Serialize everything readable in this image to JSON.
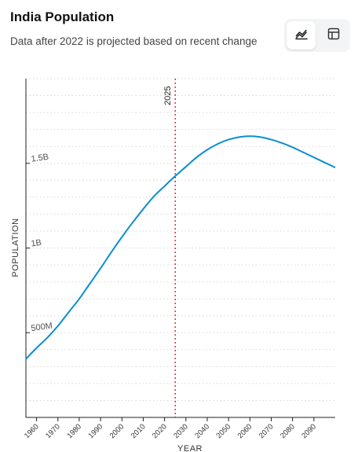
{
  "header": {
    "title": "India Population",
    "subtitle": "Data after 2022 is projected based on recent change"
  },
  "toolbar": {
    "chart_view_icon": "line-chart-icon",
    "table_view_icon": "table-grid-icon",
    "active": "chart"
  },
  "colors": {
    "line": "#0a8ed1",
    "marker": "#e0303a",
    "axis": "#222222",
    "grid": "#d8d8d8"
  },
  "chart_data": {
    "type": "line",
    "title": "India Population",
    "subtitle": "Data after 2022 is projected based on recent change",
    "xlabel": "YEAR",
    "ylabel": "POPULATION",
    "xlim": [
      1955,
      2100
    ],
    "ylim": [
      0,
      2000000000
    ],
    "x_ticks": [
      1960,
      1970,
      1980,
      1990,
      2000,
      2010,
      2020,
      2030,
      2040,
      2050,
      2060,
      2070,
      2080,
      2090
    ],
    "y_ticks": [
      {
        "value": 500000000,
        "label": "500M"
      },
      {
        "value": 1000000000,
        "label": "1B"
      },
      {
        "value": 1500000000,
        "label": "1.5B"
      }
    ],
    "grid": true,
    "marker": {
      "x": 2025,
      "label": "2025"
    },
    "series": [
      {
        "x": [
          1955,
          1960,
          1965,
          1970,
          1975,
          1980,
          1985,
          1990,
          1995,
          2000,
          2005,
          2010,
          2015,
          2020,
          2022,
          2025,
          2030,
          2035,
          2040,
          2045,
          2050,
          2055,
          2060,
          2065,
          2070,
          2075,
          2080,
          2085,
          2090,
          2095,
          2100
        ],
        "y": [
          345000000,
          410000000,
          470000000,
          540000000,
          620000000,
          700000000,
          790000000,
          880000000,
          975000000,
          1065000000,
          1150000000,
          1230000000,
          1305000000,
          1365000000,
          1390000000,
          1425000000,
          1480000000,
          1535000000,
          1580000000,
          1615000000,
          1640000000,
          1655000000,
          1660000000,
          1655000000,
          1640000000,
          1620000000,
          1595000000,
          1565000000,
          1535000000,
          1505000000,
          1475000000
        ]
      }
    ]
  }
}
